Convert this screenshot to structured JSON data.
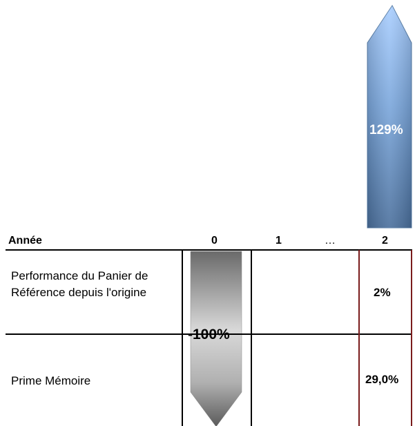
{
  "header": {
    "year_label": "Année",
    "col_0": "0",
    "col_1": "1",
    "col_dots": "…",
    "col_2": "2"
  },
  "rows": [
    {
      "label": "Performance du Panier de Référence depuis l'origine",
      "year2_value": "2%"
    },
    {
      "label": "Prime Mémoire",
      "year2_value": "29,0%"
    }
  ],
  "arrows": {
    "down_label": "-100%",
    "up_label": "129%"
  },
  "colors": {
    "up_arrow_light": "#a9ceff",
    "up_arrow_dark": "#4a6f9c",
    "down_arrow_light": "#cfcfcf",
    "down_arrow_dark": "#5e5e5e",
    "highlight_border": "#7a1b1b"
  }
}
